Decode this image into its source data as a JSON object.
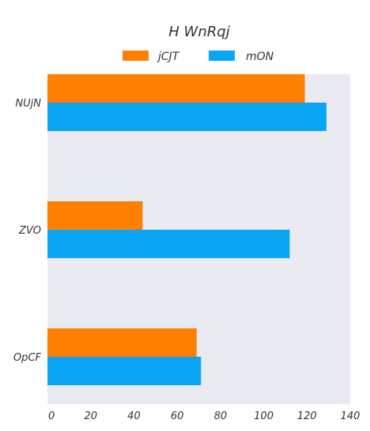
{
  "chart_data": {
    "type": "bar",
    "orientation": "horizontal",
    "title": "H WnRqj",
    "xlabel": "",
    "ylabel": "",
    "categories": [
      "NUjN",
      "ZVO",
      "OpCF"
    ],
    "series": [
      {
        "name": "jCJT",
        "color": "#ff7f00",
        "values": [
          119,
          44,
          69
        ]
      },
      {
        "name": "mON",
        "color": "#0aa5f5",
        "values": [
          129,
          112,
          71
        ]
      }
    ],
    "xlim": [
      0,
      140
    ],
    "xticks": [
      0,
      20,
      40,
      60,
      80,
      100,
      120,
      140
    ],
    "grid": false,
    "legend": "top-center",
    "plot_background": "#eaeaf2"
  }
}
